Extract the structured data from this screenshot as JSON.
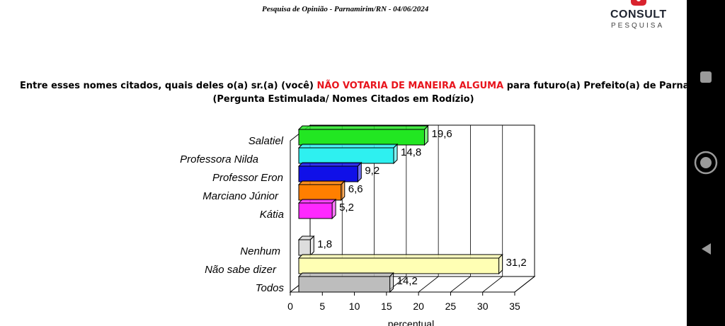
{
  "header": {
    "subtitle": "Pesquisa de Opinião  -  Parnamirim/RN  -  04/06/2024"
  },
  "logo": {
    "name": "CONSULT",
    "sub": "PESQUISA",
    "color": "#d9232e"
  },
  "question": {
    "part1": "Entre esses nomes citados, quais deles o(a) sr.(a) (você) ",
    "highlight": "NÃO VOTARIA DE MANEIRA ALGUMA",
    "part2": " para futuro(a) Prefeito(a) de Parnamirim?",
    "line2": "(Pergunta Estimulada/ Nomes Citados em Rodízio)"
  },
  "chart_data": {
    "type": "bar",
    "orientation": "horizontal",
    "categories": [
      "Salatiel",
      "Professora Nilda",
      "Professor Eron",
      "Marciano Júnior",
      "Kátia",
      "Nenhum",
      "Não sabe dizer",
      "Todos"
    ],
    "values": [
      19.6,
      14.8,
      9.2,
      6.6,
      5.2,
      1.8,
      31.2,
      14.2
    ],
    "value_labels": [
      "19,6",
      "14,8",
      "9,2",
      "6,6",
      "5,2",
      "1,8",
      "31,2",
      "14,2"
    ],
    "colors": [
      "#22e622",
      "#2ef0f0",
      "#1010e8",
      "#ff7f00",
      "#ff28ff",
      "#dddddd",
      "#ffffb4",
      "#bdbdbd"
    ],
    "xlabel": "percentual",
    "xlim": [
      0,
      35
    ],
    "xticks": [
      "0",
      "5",
      "10",
      "15",
      "20",
      "25",
      "30",
      "35"
    ],
    "grid": true
  },
  "navbar": {
    "items": [
      "square-icon",
      "circle-icon",
      "back-triangle-icon"
    ]
  }
}
